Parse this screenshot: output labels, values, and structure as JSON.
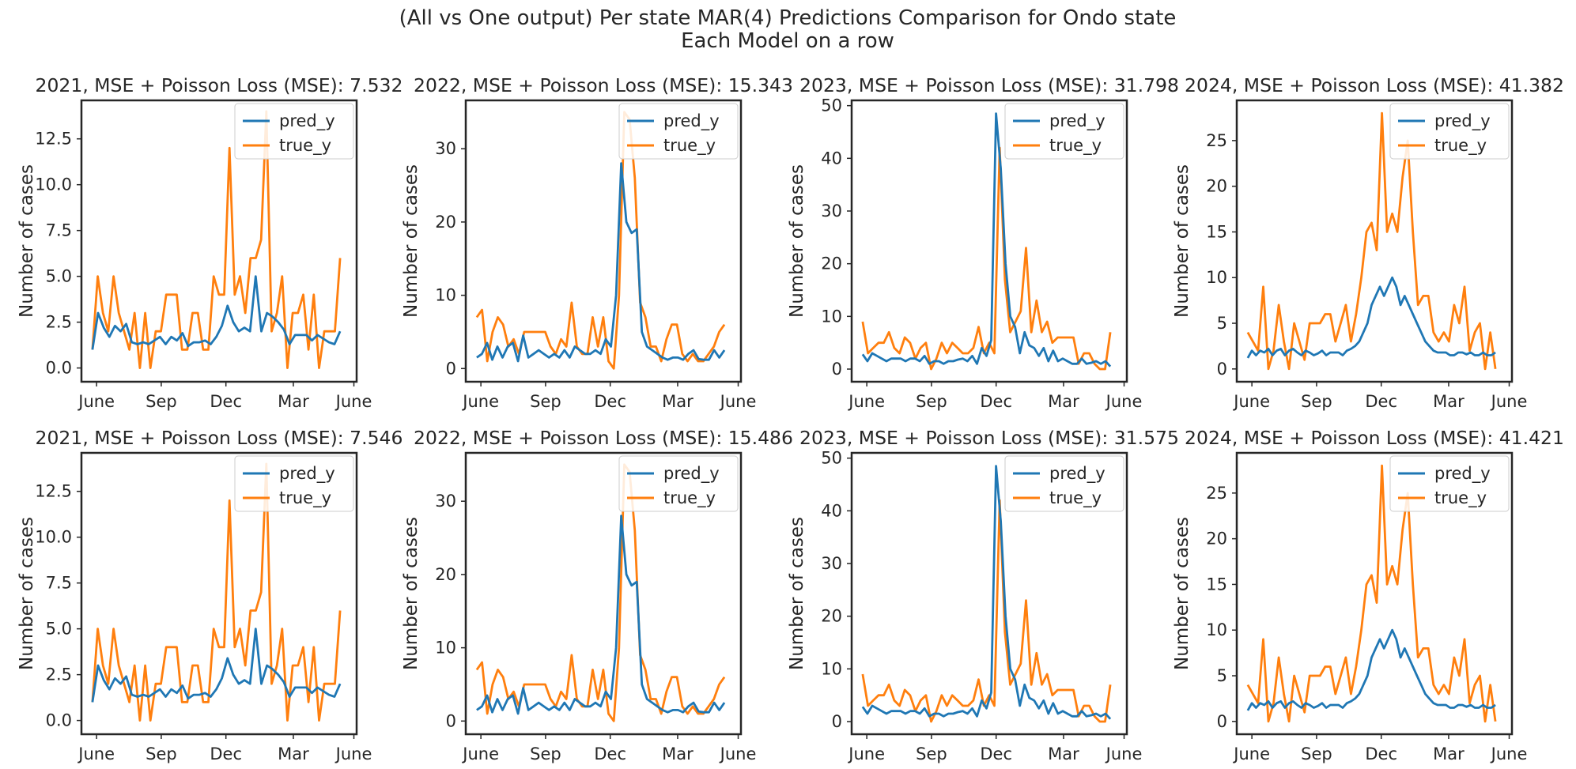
{
  "figure": {
    "title_line1": "(All vs One output) Per state MAR(4) Predictions Comparison for Ondo state",
    "title_line2": "Each Model on a row"
  },
  "colors": {
    "pred": "#1f77b4",
    "true": "#ff7f0e",
    "frame": "#262626"
  },
  "chart_data": [
    {
      "type": "line",
      "row": 0,
      "col": 0,
      "title": "2021, MSE + Poisson Loss (MSE): 7.532",
      "ylabel": "Number of cases",
      "xticks": [
        "June",
        "Sep",
        "Dec",
        "Mar",
        "June"
      ],
      "yticks": [
        0,
        2.5,
        5,
        7.5,
        10,
        12.5
      ],
      "yticklabels": [
        "0.0",
        "2.5",
        "5.0",
        "7.5",
        "10.0",
        "12.5"
      ],
      "ylim": [
        -0.75,
        14.6
      ],
      "legend": "top-right",
      "series": [
        {
          "name": "pred_y",
          "values": [
            1,
            3,
            2.2,
            1.7,
            2.3,
            2,
            2.4,
            1.4,
            1.3,
            1.4,
            1.3,
            1.5,
            1.7,
            1.3,
            1.7,
            1.5,
            1.9,
            1.2,
            1.4,
            1.4,
            1.5,
            1.3,
            1.7,
            2.3,
            3.4,
            2.5,
            2,
            2.2,
            2,
            5,
            2,
            3,
            2.8,
            2.5,
            2.1,
            1.3,
            1.8,
            1.8,
            1.8,
            1.5,
            1.8,
            1.6,
            1.4,
            1.3,
            2
          ]
        },
        {
          "name": "true_y",
          "values": [
            1,
            5,
            3,
            2,
            5,
            3,
            2,
            1,
            3,
            0,
            3,
            0,
            2,
            2,
            4,
            4,
            4,
            1,
            1,
            3,
            3,
            1,
            1,
            5,
            4,
            4,
            12,
            4,
            5,
            3,
            6,
            6,
            7,
            14,
            2,
            3,
            5,
            0,
            3,
            3,
            4,
            1,
            4,
            0,
            2,
            2,
            2,
            6
          ]
        }
      ]
    },
    {
      "type": "line",
      "row": 0,
      "col": 1,
      "title": "2022, MSE + Poisson Loss (MSE): 15.343",
      "ylabel": "Number of cases",
      "xticks": [
        "June",
        "Sep",
        "Dec",
        "Mar",
        "June"
      ],
      "yticks": [
        0,
        10,
        20,
        30
      ],
      "yticklabels": [
        "0",
        "10",
        "20",
        "30"
      ],
      "ylim": [
        -1.8,
        36.6
      ],
      "legend": "top-right",
      "series": [
        {
          "name": "pred_y",
          "values": [
            1.5,
            2,
            3.5,
            1.2,
            3,
            1.5,
            3,
            3.5,
            1,
            4.5,
            1.5,
            2,
            2.5,
            2,
            1.5,
            2,
            1.5,
            2.5,
            1.5,
            3,
            2.5,
            2,
            2,
            2.5,
            2,
            4,
            3,
            10,
            28,
            20,
            18.5,
            19,
            5,
            3,
            2.5,
            2,
            1.5,
            1.2,
            1.5,
            1.5,
            1.2,
            2,
            2.5,
            1.3,
            1.2,
            1.2,
            2.5,
            1.5,
            2.5
          ]
        },
        {
          "name": "true_y",
          "values": [
            7,
            8,
            1,
            5,
            7,
            6,
            3,
            4,
            2,
            5,
            5,
            5,
            5,
            5,
            3,
            2,
            4,
            3,
            9,
            3,
            2,
            2,
            7,
            3,
            7,
            1,
            0,
            10,
            35,
            34,
            26,
            9,
            7,
            3,
            3,
            1,
            4,
            6,
            6,
            2,
            1,
            2,
            1,
            1,
            2,
            3,
            5,
            6
          ]
        }
      ]
    },
    {
      "type": "line",
      "row": 0,
      "col": 2,
      "title": "2023, MSE + Poisson Loss (MSE): 31.798",
      "ylabel": "Number of cases",
      "xticks": [
        "June",
        "Sep",
        "Dec",
        "Mar",
        "June"
      ],
      "yticks": [
        0,
        10,
        20,
        30,
        40,
        50
      ],
      "yticklabels": [
        "0",
        "10",
        "20",
        "30",
        "40",
        "50"
      ],
      "ylim": [
        -2.4,
        51
      ],
      "legend": "top-right",
      "series": [
        {
          "name": "pred_y",
          "values": [
            2.8,
            1.5,
            3,
            2.5,
            2,
            1.5,
            2,
            2,
            2,
            1.5,
            2,
            2,
            1.5,
            2.5,
            1,
            1.5,
            1.5,
            1,
            1.5,
            1.5,
            1.8,
            2,
            1.5,
            2.5,
            1,
            4,
            2.5,
            5.5,
            48.5,
            38,
            20,
            10,
            8,
            3,
            7,
            4.5,
            4,
            2.5,
            4,
            1.5,
            3.5,
            1.5,
            2,
            1.5,
            1,
            1,
            2,
            1,
            1.2,
            1.5,
            1,
            1.5,
            0.5
          ]
        },
        {
          "name": "true_y",
          "values": [
            9,
            3,
            4,
            5,
            5,
            7,
            4,
            3,
            6,
            5,
            2,
            4,
            5,
            0,
            2,
            5,
            3,
            5,
            4,
            3,
            3,
            4,
            8,
            3,
            5,
            3,
            42,
            17,
            7,
            9,
            11,
            23,
            7,
            13,
            7,
            9,
            5,
            6,
            6,
            6,
            6,
            1,
            3,
            3,
            1,
            0,
            0,
            7
          ]
        }
      ]
    },
    {
      "type": "line",
      "row": 0,
      "col": 3,
      "title": "2024, MSE + Poisson Loss (MSE): 41.382",
      "ylabel": "Number of cases",
      "xticks": [
        "June",
        "Sep",
        "Dec",
        "Mar",
        "June"
      ],
      "yticks": [
        0,
        5,
        10,
        15,
        20,
        25
      ],
      "yticklabels": [
        "0",
        "5",
        "10",
        "15",
        "20",
        "25"
      ],
      "ylim": [
        -1.4,
        29.4
      ],
      "legend": "top-right",
      "series": [
        {
          "name": "pred_y",
          "values": [
            1.2,
            2,
            1.5,
            2,
            1.8,
            2.2,
            1.5,
            2,
            2.2,
            1.5,
            2,
            2.2,
            1.8,
            1.5,
            2,
            1.8,
            1.5,
            1.7,
            2,
            1.5,
            1.8,
            1.8,
            1.8,
            1.5,
            2,
            2.2,
            2.5,
            3,
            4,
            5,
            7,
            8,
            9,
            8,
            9,
            10,
            9,
            7,
            8,
            7,
            6,
            5,
            4,
            3,
            2.5,
            2,
            1.8,
            1.8,
            1.8,
            1.5,
            1.5,
            1.8,
            1.8,
            1.6,
            1.8,
            1.5,
            1.5,
            1.8,
            1.5,
            1.5,
            1.8
          ]
        },
        {
          "name": "true_y",
          "values": [
            4,
            3,
            2,
            9,
            0,
            2,
            7,
            3,
            0,
            5,
            3,
            1,
            5,
            5,
            5,
            6,
            6,
            3,
            5,
            7,
            3,
            6,
            10,
            15,
            16,
            13,
            28,
            15,
            17,
            15,
            21,
            25,
            15,
            7,
            8,
            8,
            4,
            3,
            4,
            3,
            7,
            5,
            9,
            2,
            4,
            5,
            0,
            4,
            0
          ]
        }
      ]
    },
    {
      "type": "line",
      "row": 1,
      "col": 0,
      "title": "2021, MSE + Poisson Loss (MSE): 7.546",
      "ylabel": "Number of cases",
      "xticks": [
        "June",
        "Sep",
        "Dec",
        "Mar",
        "June"
      ],
      "yticks": [
        0,
        2.5,
        5,
        7.5,
        10,
        12.5
      ],
      "yticklabels": [
        "0.0",
        "2.5",
        "5.0",
        "7.5",
        "10.0",
        "12.5"
      ],
      "ylim": [
        -0.75,
        14.6
      ],
      "legend": "top-right",
      "series": [
        {
          "name": "pred_y",
          "values": [
            1,
            3,
            2.2,
            1.7,
            2.3,
            2,
            2.4,
            1.4,
            1.3,
            1.4,
            1.3,
            1.5,
            1.7,
            1.3,
            1.7,
            1.5,
            1.9,
            1.2,
            1.4,
            1.4,
            1.5,
            1.3,
            1.7,
            2.3,
            3.4,
            2.5,
            2,
            2.2,
            2,
            5,
            2,
            3,
            2.8,
            2.5,
            2.1,
            1.3,
            1.8,
            1.8,
            1.8,
            1.5,
            1.8,
            1.6,
            1.4,
            1.3,
            2
          ]
        },
        {
          "name": "true_y",
          "values": [
            1,
            5,
            3,
            2,
            5,
            3,
            2,
            1,
            3,
            0,
            3,
            0,
            2,
            2,
            4,
            4,
            4,
            1,
            1,
            3,
            3,
            1,
            1,
            5,
            4,
            4,
            12,
            4,
            5,
            3,
            6,
            6,
            7,
            14,
            2,
            3,
            5,
            0,
            3,
            3,
            4,
            1,
            4,
            0,
            2,
            2,
            2,
            6
          ]
        }
      ]
    },
    {
      "type": "line",
      "row": 1,
      "col": 1,
      "title": "2022, MSE + Poisson Loss (MSE): 15.486",
      "ylabel": "Number of cases",
      "xticks": [
        "June",
        "Sep",
        "Dec",
        "Mar",
        "June"
      ],
      "yticks": [
        0,
        10,
        20,
        30
      ],
      "yticklabels": [
        "0",
        "10",
        "20",
        "30"
      ],
      "ylim": [
        -1.8,
        36.6
      ],
      "legend": "top-right",
      "series": [
        {
          "name": "pred_y",
          "values": [
            1.5,
            2,
            3.5,
            1.2,
            3,
            1.5,
            3,
            3.5,
            1,
            4.5,
            1.5,
            2,
            2.5,
            2,
            1.5,
            2,
            1.5,
            2.5,
            1.5,
            3,
            2.5,
            2,
            2,
            2.5,
            2,
            4,
            3,
            10,
            28,
            20,
            18.5,
            19,
            5,
            3,
            2.5,
            2,
            1.5,
            1.2,
            1.5,
            1.5,
            1.2,
            2,
            2.5,
            1.3,
            1.2,
            1.2,
            2.5,
            1.5,
            2.5
          ]
        },
        {
          "name": "true_y",
          "values": [
            7,
            8,
            1,
            5,
            7,
            6,
            3,
            4,
            2,
            5,
            5,
            5,
            5,
            5,
            3,
            2,
            4,
            3,
            9,
            3,
            2,
            2,
            7,
            3,
            7,
            1,
            0,
            10,
            35,
            34,
            26,
            9,
            7,
            3,
            3,
            1,
            4,
            6,
            6,
            2,
            1,
            2,
            1,
            1,
            2,
            3,
            5,
            6
          ]
        }
      ]
    },
    {
      "type": "line",
      "row": 1,
      "col": 2,
      "title": "2023, MSE + Poisson Loss (MSE): 31.575",
      "ylabel": "Number of cases",
      "xticks": [
        "June",
        "Sep",
        "Dec",
        "Mar",
        "June"
      ],
      "yticks": [
        0,
        10,
        20,
        30,
        40,
        50
      ],
      "yticklabels": [
        "0",
        "10",
        "20",
        "30",
        "40",
        "50"
      ],
      "ylim": [
        -2.4,
        51
      ],
      "legend": "top-right",
      "series": [
        {
          "name": "pred_y",
          "values": [
            2.8,
            1.5,
            3,
            2.5,
            2,
            1.5,
            2,
            2,
            2,
            1.5,
            2,
            2,
            1.5,
            2.5,
            1,
            1.5,
            1.5,
            1,
            1.5,
            1.5,
            1.8,
            2,
            1.5,
            2.5,
            1,
            4,
            2.5,
            5.5,
            48.5,
            38,
            20,
            10,
            8,
            3,
            7,
            4.5,
            4,
            2.5,
            4,
            1.5,
            3.5,
            1.5,
            2,
            1.5,
            1,
            1,
            2,
            1,
            1.2,
            1.5,
            1,
            1.5,
            0.5
          ]
        },
        {
          "name": "true_y",
          "values": [
            9,
            3,
            4,
            5,
            5,
            7,
            4,
            3,
            6,
            5,
            2,
            4,
            5,
            0,
            2,
            5,
            3,
            5,
            4,
            3,
            3,
            4,
            8,
            3,
            5,
            3,
            42,
            17,
            7,
            9,
            11,
            23,
            7,
            13,
            7,
            9,
            5,
            6,
            6,
            6,
            6,
            1,
            3,
            3,
            1,
            0,
            0,
            7
          ]
        }
      ]
    },
    {
      "type": "line",
      "row": 1,
      "col": 3,
      "title": "2024, MSE + Poisson Loss (MSE): 41.421",
      "ylabel": "Number of cases",
      "xticks": [
        "June",
        "Sep",
        "Dec",
        "Mar",
        "June"
      ],
      "yticks": [
        0,
        5,
        10,
        15,
        20,
        25
      ],
      "yticklabels": [
        "0",
        "5",
        "10",
        "15",
        "20",
        "25"
      ],
      "ylim": [
        -1.4,
        29.4
      ],
      "legend": "top-right",
      "series": [
        {
          "name": "pred_y",
          "values": [
            1.2,
            2,
            1.5,
            2,
            1.8,
            2.2,
            1.5,
            2,
            2.2,
            1.5,
            2,
            2.2,
            1.8,
            1.5,
            2,
            1.8,
            1.5,
            1.7,
            2,
            1.5,
            1.8,
            1.8,
            1.8,
            1.5,
            2,
            2.2,
            2.5,
            3,
            4,
            5,
            7,
            8,
            9,
            8,
            9,
            10,
            9,
            7,
            8,
            7,
            6,
            5,
            4,
            3,
            2.5,
            2,
            1.8,
            1.8,
            1.8,
            1.5,
            1.5,
            1.8,
            1.8,
            1.6,
            1.8,
            1.5,
            1.5,
            1.8,
            1.5,
            1.5,
            1.8
          ]
        },
        {
          "name": "true_y",
          "values": [
            4,
            3,
            2,
            9,
            0,
            2,
            7,
            3,
            0,
            5,
            3,
            1,
            5,
            5,
            5,
            6,
            6,
            3,
            5,
            7,
            3,
            6,
            10,
            15,
            16,
            13,
            28,
            15,
            17,
            15,
            21,
            25,
            15,
            7,
            8,
            8,
            4,
            3,
            4,
            3,
            7,
            5,
            9,
            2,
            4,
            5,
            0,
            4,
            0
          ]
        }
      ]
    }
  ]
}
